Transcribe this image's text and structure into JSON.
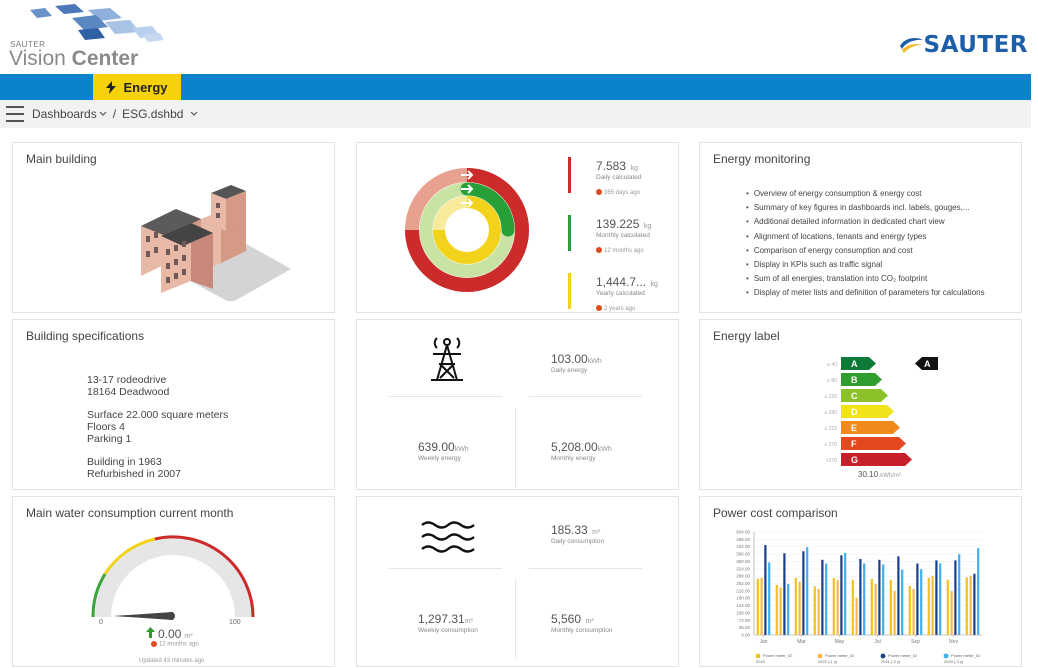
{
  "brand": {
    "vendor_small": "SAUTER",
    "app_name_light": "Vision",
    "app_name_bold": "Center",
    "logo_right": "SAUTER",
    "colors": {
      "topbar": "#0a83cc",
      "tab": "#f5d20a",
      "sauter_blue": "#1e5faa"
    }
  },
  "nav": {
    "active_tab": "Energy",
    "breadcrumb": [
      "Dashboards",
      "ESG.dshbd"
    ],
    "separator": "/"
  },
  "main_building": {
    "title": "Main building"
  },
  "co2": {
    "items": [
      {
        "value": "7.583",
        "unit": "kg",
        "label": "Daily calculated",
        "age": "365 days ago",
        "color": "#cc2b2b"
      },
      {
        "value": "139.225",
        "unit": "kg",
        "label": "Monthly calculated",
        "age": "12 months ago",
        "color": "#27a03a"
      },
      {
        "value": "1,444.7...",
        "unit": "kg",
        "label": "Yearly calculated",
        "age": "2 years ago",
        "color": "#f2d21a"
      }
    ]
  },
  "energy_monitoring": {
    "title": "Energy monitoring",
    "bullets": [
      "Overview of energy consumption & energy cost",
      "Summary of key figures in dashboards incl. labels, gouges,...",
      "Additional detailed information in dedicated chart view",
      "Alignment of locations, tenants and energy types",
      "Comparison of energy consumption and cost",
      "Display in KPIs such as traffic signal",
      "Sum of all energies, translation into CO₂ footprint",
      "Display of meter lists and definition of parameters for calculations"
    ]
  },
  "building_specs": {
    "title": "Building specifications",
    "lines_a": [
      "13-17 rodeodrive",
      "18164 Deadwood"
    ],
    "lines_b": [
      "Surface 22.000 square meters",
      "Floors 4",
      "Parking 1"
    ],
    "lines_c": [
      "Building in 1963",
      "Refurbished in 2007"
    ]
  },
  "energy_kpis": {
    "daily": {
      "value": "103.00",
      "unit": "kWh",
      "label": "Daily energy"
    },
    "weekly": {
      "value": "639.00",
      "unit": "kWh",
      "label": "Weekly energy"
    },
    "monthly": {
      "value": "5,208.00",
      "unit": "kWh",
      "label": "Monthly energy"
    }
  },
  "energy_label": {
    "title": "Energy label",
    "classes": [
      {
        "letter": "A",
        "limit": "≤ 40",
        "color": "#0e7a3a"
      },
      {
        "letter": "B",
        "limit": "≤ 80",
        "color": "#2f9e2f"
      },
      {
        "letter": "C",
        "limit": "≤ 120",
        "color": "#8cc12a"
      },
      {
        "letter": "D",
        "limit": "≤ 180",
        "color": "#f2e21a"
      },
      {
        "letter": "E",
        "limit": "≤ 222",
        "color": "#f08a1c"
      },
      {
        "letter": "F",
        "limit": "≤ 270",
        "color": "#e4481f"
      },
      {
        "letter": "G",
        "limit": ">270",
        "color": "#c8202a"
      }
    ],
    "current": "A",
    "value": "30.10",
    "unit": "kWh/m²"
  },
  "water_gauge": {
    "title": "Main water consumption current month",
    "min": "0",
    "max": "100",
    "value": "0.00",
    "unit": "m³",
    "age": "12 months ago",
    "updated": "Updated 43 minutes ago"
  },
  "water_kpis": {
    "daily": {
      "value": "185.33",
      "unit": "m³",
      "label": "Daily consumption"
    },
    "weekly": {
      "value": "1,297.31",
      "unit": "m³",
      "label": "Weekly consumption"
    },
    "monthly": {
      "value": "5,560",
      "unit": "m³",
      "label": "Monthly consumption"
    }
  },
  "power_cost": {
    "title": "Power cost comparison"
  },
  "chart_data": {
    "type": "bar",
    "title": "Power cost comparison",
    "ylim": [
      0,
      504
    ],
    "y_ticks": [
      "504.00",
      "468.00",
      "432.00",
      "396.00",
      "360.00",
      "324.00",
      "288.00",
      "252.00",
      "216.00",
      "180.00",
      "144.00",
      "108.00",
      "72.00",
      "36.00",
      "0.00"
    ],
    "categories": [
      "Jan",
      "Feb",
      "Mar",
      "Apr",
      "May",
      "Jun",
      "Jul",
      "Aug",
      "Sep",
      "Oct",
      "Nov",
      "Dec"
    ],
    "x_tick_labels": [
      "Jan",
      "Mar",
      "May",
      "Jul",
      "Sep",
      "Nov"
    ],
    "series": [
      {
        "name": "Power meter_02 2023",
        "color": "#f2c21a",
        "values": [
          275,
          245,
          280,
          238,
          278,
          270,
          275,
          270,
          240,
          280,
          270,
          282
        ]
      },
      {
        "name": "Power meter_02 2022 (-1 y)",
        "color": "#f5b84a",
        "values": [
          280,
          232,
          262,
          225,
          268,
          182,
          250,
          215,
          225,
          290,
          215,
          290
        ]
      },
      {
        "name": "Power meter_02 2021 (-2 y)",
        "color": "#1a3f8a",
        "values": [
          440,
          400,
          410,
          368,
          390,
          372,
          368,
          385,
          350,
          365,
          365,
          300
        ]
      },
      {
        "name": "Power meter_02 2020 (-3 y)",
        "color": "#3fb0e8",
        "values": [
          355,
          250,
          430,
          350,
          402,
          350,
          345,
          320,
          322,
          350,
          395,
          425
        ]
      }
    ],
    "legend": "bottom"
  }
}
